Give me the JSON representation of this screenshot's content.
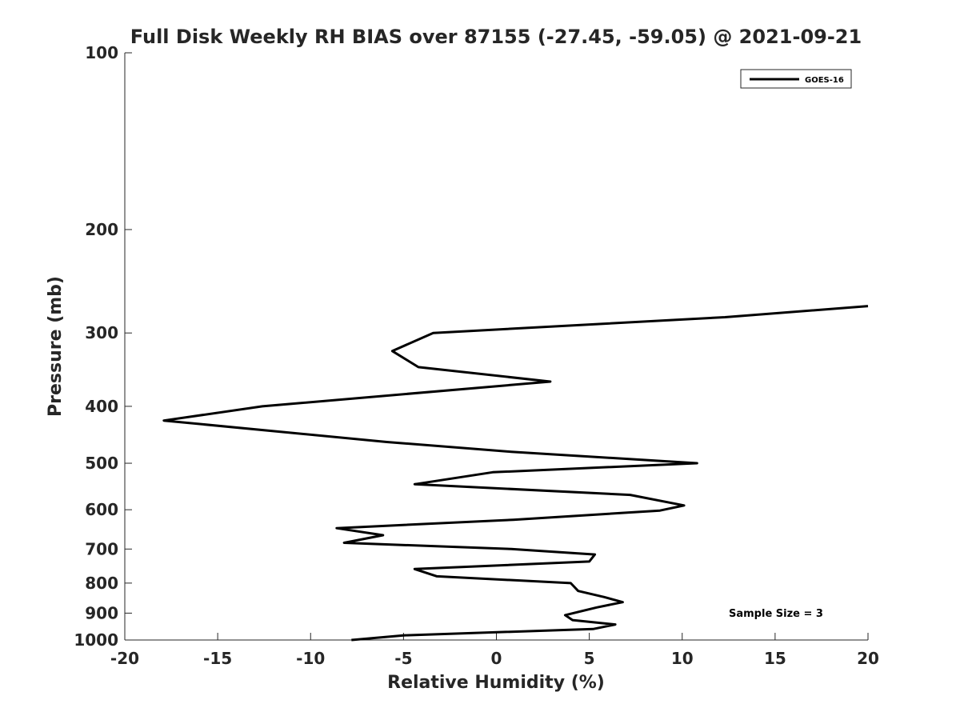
{
  "chart_data": {
    "type": "line",
    "title": "Full Disk Weekly RH BIAS over 87155 (-27.45, -59.05) @ 2021-09-21",
    "xlabel": "Relative Humidity (%)",
    "ylabel": "Pressure (mb)",
    "xlim": [
      -20,
      20
    ],
    "ylim": [
      100,
      1000
    ],
    "y_scale": "log",
    "y_reversed": true,
    "x_ticks": [
      "-20",
      "-15",
      "-10",
      "-5",
      "0",
      "5",
      "10",
      "15",
      "20"
    ],
    "y_ticks": [
      "100",
      "200",
      "300",
      "400",
      "500",
      "600",
      "700",
      "800",
      "900",
      "1000"
    ],
    "grid": false,
    "legend": {
      "position": "top-right",
      "entries": [
        "GOES-16"
      ]
    },
    "annotation": "Sample Size = 3",
    "series": [
      {
        "name": "GOES-16",
        "color": "#000000",
        "points": [
          {
            "x": 20.0,
            "y": 270
          },
          {
            "x": 12.3,
            "y": 282
          },
          {
            "x": -3.4,
            "y": 300
          },
          {
            "x": -5.6,
            "y": 322
          },
          {
            "x": -4.2,
            "y": 343
          },
          {
            "x": 2.9,
            "y": 363
          },
          {
            "x": -12.6,
            "y": 400
          },
          {
            "x": -17.9,
            "y": 423
          },
          {
            "x": -5.9,
            "y": 460
          },
          {
            "x": 0.8,
            "y": 478
          },
          {
            "x": 10.8,
            "y": 500
          },
          {
            "x": -0.2,
            "y": 518
          },
          {
            "x": -4.4,
            "y": 543
          },
          {
            "x": 7.2,
            "y": 566
          },
          {
            "x": 10.1,
            "y": 590
          },
          {
            "x": 8.8,
            "y": 602
          },
          {
            "x": 0.9,
            "y": 624
          },
          {
            "x": -8.6,
            "y": 645
          },
          {
            "x": -6.1,
            "y": 663
          },
          {
            "x": -8.2,
            "y": 683
          },
          {
            "x": 0.8,
            "y": 700
          },
          {
            "x": 5.3,
            "y": 715
          },
          {
            "x": 5.0,
            "y": 735
          },
          {
            "x": -4.4,
            "y": 757
          },
          {
            "x": -3.2,
            "y": 779
          },
          {
            "x": 4.0,
            "y": 800
          },
          {
            "x": 4.4,
            "y": 825
          },
          {
            "x": 5.8,
            "y": 845
          },
          {
            "x": 6.8,
            "y": 862
          },
          {
            "x": 5.4,
            "y": 880
          },
          {
            "x": 3.7,
            "y": 907
          },
          {
            "x": 4.1,
            "y": 925
          },
          {
            "x": 6.4,
            "y": 941
          },
          {
            "x": 5.2,
            "y": 958
          },
          {
            "x": -5.0,
            "y": 982
          },
          {
            "x": -7.8,
            "y": 1000
          }
        ]
      }
    ]
  }
}
